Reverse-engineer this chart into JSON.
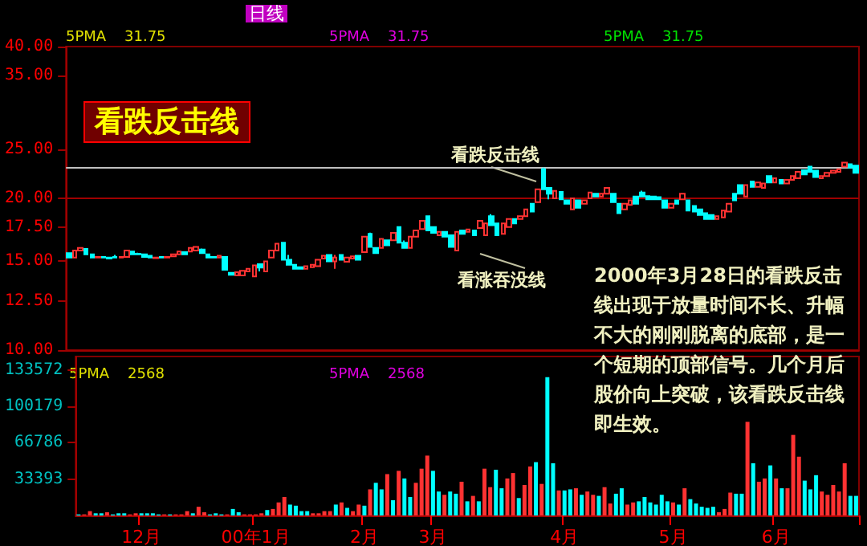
{
  "chart_data": [
    {
      "type": "candlestick",
      "title": "看跌反击线",
      "subtitle": "日线",
      "log": true,
      "ylim": [
        10,
        40
      ],
      "yticks": [
        {
          "value": 10,
          "label": "10.00"
        },
        {
          "value": 12.5,
          "label": "12.50"
        },
        {
          "value": 15,
          "label": "15.00"
        },
        {
          "value": 17.5,
          "label": "17.50"
        },
        {
          "value": 20,
          "label": "20.00"
        },
        {
          "value": 25,
          "label": "25.00"
        },
        {
          "value": 35,
          "label": "35.00"
        },
        {
          "value": 40,
          "label": "40.00"
        }
      ],
      "tick_labels": "y",
      "colors": [
        "#00ffff",
        "#ff3232",
        "#ff3232",
        "#00ffff",
        "#00ffff",
        "#ff3232",
        "#00ffff",
        "#00ffff",
        "#00ffff",
        "#ff3232",
        "#ff3232",
        "#00ffff",
        "#00ffff",
        "#00ffff",
        "#00ffff",
        "#ff3232",
        "#00ffff",
        "#ff3232",
        "#ff3232",
        "#ff3232",
        "#00ffff",
        "#ff3232",
        "#ff3232",
        "#00ffff",
        "#00ffff",
        "#00ffff",
        "#ff3232",
        "#00ffff",
        "#00ffff",
        "#ff3232",
        "#ff3232",
        "#ff3232",
        "#ff3232",
        "#00ffff",
        "#ff3232",
        "#ff3232",
        "#ff3232",
        "#00ffff",
        "#00ffff",
        "#00ffff",
        "#00ffff",
        "#ff3232",
        "#ff3232",
        "#ff3232",
        "#ff3232",
        "#00ffff",
        "#ff3232",
        "#00ffff",
        "#ff3232",
        "#ff3232",
        "#00ffff",
        "#ff3232",
        "#00ffff",
        "#00ffff",
        "#ff3232",
        "#00ffff",
        "#ff3232",
        "#00ffff",
        "#00ffff",
        "#ff3232",
        "#ff3232",
        "#ff3232",
        "#00ffff",
        "#00ffff",
        "#ff3232",
        "#00ffff",
        "#00ffff",
        "#ff3232",
        "#00ffff",
        "#ff3232",
        "#00ffff",
        "#ff3232",
        "#ff3232",
        "#00ffff",
        "#00ffff",
        "#ff3232",
        "#ff3232",
        "#00ffff",
        "#ff3232",
        "#ff3232",
        "#00ffff",
        "#ff3232",
        "#00ffff",
        "#00ffff",
        "#ff3232",
        "#00ffff",
        "#00ffff",
        "#ff3232",
        "#00ffff",
        "#ff3232",
        "#ff3232",
        "#00ffff",
        "#ff3232",
        "#ff3232",
        "#00ffff",
        "#00ffff",
        "#ff3232",
        "#ff3232",
        "#00ffff",
        "#00ffff",
        "#00ffff",
        "#00ffff",
        "#00ffff",
        "#00ffff",
        "#ff3232",
        "#00ffff",
        "#ff3232",
        "#00ffff",
        "#00ffff",
        "#00ffff",
        "#00ffff",
        "#00ffff",
        "#ff3232",
        "#ff3232",
        "#ff3232",
        "#00ffff",
        "#00ffff",
        "#ff3232",
        "#00ffff",
        "#ff3232",
        "#ff3232",
        "#00ffff",
        "#ff3232",
        "#00ffff",
        "#ff3232",
        "#ff3232",
        "#ff3232",
        "#00ffff",
        "#00ffff",
        "#00ffff",
        "#ff3232",
        "#ff3232",
        "#ff3232",
        "#ff3232",
        "#ff3232",
        "#00ffff",
        "#00ffff"
      ],
      "ref_lines": [
        {
          "axis": "y",
          "value": 20,
          "color": "#a00000"
        },
        {
          "axis": "y",
          "value": 23.0,
          "color": "#c0c0c0"
        }
      ],
      "annotations": [
        "5PMA    31.75",
        "5PMA    31.75",
        "5PMA    31.75",
        "看跌反击线",
        "看涨吞没线",
        "2000年3月28日的看跌反击线出现于放量时间不长、升幅不大的刚刚脱离的底部，是一个短期的顶部信号。几个月后股价向上突破，该看跌反击线即生效。"
      ],
      "categories": [
        null,
        null,
        null,
        null,
        null,
        null,
        null,
        null,
        null,
        null,
        null,
        null,
        null,
        null,
        null,
        null,
        null,
        null,
        null,
        null,
        null,
        null,
        null,
        null,
        null,
        null,
        null,
        null,
        null,
        null,
        null,
        null,
        null,
        null,
        null,
        null,
        null,
        null,
        null,
        null,
        null,
        null,
        null,
        null,
        null,
        null,
        null,
        null,
        null,
        null,
        null,
        null,
        null,
        null,
        null,
        null,
        null,
        null,
        null,
        null,
        null,
        null,
        null,
        null,
        null,
        null,
        null,
        null,
        null,
        null,
        null,
        null,
        null,
        null,
        null,
        null,
        null,
        null,
        null,
        null,
        null,
        null,
        null,
        null,
        null,
        null,
        null,
        null,
        null,
        null,
        null,
        null,
        null,
        null,
        null,
        null,
        null,
        null,
        null,
        null,
        null,
        null,
        null,
        null,
        null,
        null,
        null,
        null,
        null,
        null,
        null,
        null,
        null,
        null,
        null,
        null,
        null,
        null,
        null,
        null,
        null,
        null,
        null,
        null,
        null,
        null,
        null,
        null,
        null,
        null,
        null,
        null,
        null,
        null,
        null,
        null,
        null
      ],
      "ohlc": [
        [
          15.57,
          15.62,
          15.22,
          15.26
        ],
        [
          15.26,
          15.8,
          15.2,
          15.76
        ],
        [
          15.76,
          15.98,
          15.72,
          15.95
        ],
        [
          15.87,
          15.9,
          15.45,
          15.49
        ],
        [
          15.49,
          15.52,
          15.22,
          15.26
        ],
        [
          15.26,
          15.34,
          15.22,
          15.3
        ],
        [
          15.3,
          15.34,
          15.22,
          15.26
        ],
        [
          15.26,
          15.3,
          15.15,
          15.19
        ],
        [
          15.3,
          15.45,
          15.22,
          15.26
        ],
        [
          15.26,
          15.3,
          15.2,
          15.3
        ],
        [
          15.3,
          15.8,
          15.26,
          15.76
        ],
        [
          15.68,
          15.72,
          15.45,
          15.49
        ],
        [
          15.53,
          15.6,
          15.45,
          15.49
        ],
        [
          15.49,
          15.52,
          15.26,
          15.3
        ],
        [
          15.38,
          15.42,
          15.22,
          15.26
        ],
        [
          15.22,
          15.3,
          15.19,
          15.26
        ],
        [
          15.3,
          15.34,
          15.22,
          15.26
        ],
        [
          15.26,
          15.3,
          15.2,
          15.3
        ],
        [
          15.34,
          15.52,
          15.3,
          15.49
        ],
        [
          15.49,
          15.72,
          15.45,
          15.68
        ],
        [
          15.64,
          15.68,
          15.45,
          15.49
        ],
        [
          15.68,
          15.98,
          15.64,
          15.95
        ],
        [
          15.76,
          16.05,
          15.72,
          16.02
        ],
        [
          15.83,
          15.9,
          15.53,
          15.57
        ],
        [
          15.49,
          15.52,
          15.22,
          15.26
        ],
        [
          15.3,
          15.34,
          15.2,
          15.26
        ],
        [
          15.26,
          15.42,
          15.22,
          15.38
        ],
        [
          15.3,
          15.34,
          14.4,
          14.43
        ],
        [
          14.23,
          14.27,
          14.05,
          14.1
        ],
        [
          14.07,
          14.3,
          14.03,
          14.27
        ],
        [
          14.07,
          14.4,
          14.03,
          14.37
        ],
        [
          14.33,
          14.55,
          14.3,
          14.5
        ],
        [
          14.0,
          14.76,
          13.95,
          14.73
        ],
        [
          14.8,
          14.85,
          14.33,
          14.57
        ],
        [
          14.33,
          15.03,
          14.3,
          15.0
        ],
        [
          15.26,
          15.8,
          15.2,
          15.76
        ],
        [
          15.76,
          16.3,
          15.72,
          16.25
        ],
        [
          16.33,
          16.38,
          15.08,
          15.11
        ],
        [
          15.11,
          15.45,
          14.73,
          14.77
        ],
        [
          14.77,
          14.8,
          14.45,
          14.5
        ],
        [
          14.6,
          14.63,
          14.45,
          14.5
        ],
        [
          14.5,
          14.7,
          14.45,
          14.67
        ],
        [
          14.6,
          14.8,
          14.57,
          14.77
        ],
        [
          14.67,
          15.15,
          14.63,
          15.11
        ],
        [
          15.19,
          15.42,
          15.15,
          15.38
        ],
        [
          15.45,
          15.5,
          14.97,
          15.0
        ],
        [
          15.0,
          15.45,
          14.5,
          15.26
        ],
        [
          15.45,
          15.5,
          15.08,
          15.11
        ],
        [
          14.97,
          15.3,
          14.93,
          15.26
        ],
        [
          15.19,
          15.38,
          15.15,
          15.34
        ],
        [
          15.38,
          15.42,
          15.08,
          15.11
        ],
        [
          15.64,
          16.82,
          15.6,
          16.78
        ],
        [
          17.01,
          17.1,
          16.0,
          16.02
        ],
        [
          15.95,
          16.0,
          15.53,
          15.57
        ],
        [
          15.95,
          16.66,
          15.9,
          16.62
        ],
        [
          16.51,
          16.55,
          16.1,
          16.14
        ],
        [
          16.51,
          17.12,
          16.47,
          17.08
        ],
        [
          17.54,
          17.6,
          16.3,
          16.33
        ],
        [
          16.33,
          16.5,
          15.9,
          15.95
        ],
        [
          15.95,
          16.82,
          15.9,
          16.78
        ],
        [
          16.78,
          17.31,
          16.74,
          17.27
        ],
        [
          17.39,
          18.08,
          17.35,
          18.04
        ],
        [
          18.43,
          18.5,
          17.23,
          17.27
        ],
        [
          17.54,
          17.58,
          17.05,
          17.08
        ],
        [
          16.9,
          17.2,
          16.86,
          17.16
        ],
        [
          17.16,
          17.2,
          16.74,
          16.78
        ],
        [
          16.9,
          16.94,
          15.98,
          16.02
        ],
        [
          15.76,
          17.2,
          15.72,
          17.16
        ],
        [
          17.27,
          17.31,
          16.97,
          17.01
        ],
        [
          17.16,
          17.39,
          17.12,
          17.35
        ],
        [
          17.27,
          17.31,
          16.86,
          16.9
        ],
        [
          17.46,
          18.08,
          17.42,
          18.04
        ],
        [
          16.9,
          17.88,
          16.86,
          17.84
        ],
        [
          18.43,
          18.6,
          17.65,
          17.69
        ],
        [
          17.84,
          17.88,
          16.86,
          16.9
        ],
        [
          17.01,
          17.88,
          16.97,
          17.84
        ],
        [
          17.54,
          18.23,
          17.5,
          18.19
        ],
        [
          18.19,
          18.23,
          17.8,
          17.84
        ],
        [
          18.19,
          18.47,
          18.15,
          18.43
        ],
        [
          18.43,
          19.05,
          18.39,
          19.01
        ],
        [
          19.51,
          19.55,
          18.78,
          18.82
        ],
        [
          19.66,
          20.9,
          19.6,
          20.85
        ],
        [
          22.85,
          23.01,
          20.8,
          20.85
        ],
        [
          20.97,
          21.0,
          19.9,
          20.43
        ],
        [
          20.0,
          20.75,
          19.95,
          20.69
        ],
        [
          20.6,
          20.65,
          19.85,
          19.9
        ],
        [
          19.81,
          19.85,
          19.47,
          19.51
        ],
        [
          19.01,
          20.05,
          18.97,
          20.0
        ],
        [
          19.81,
          19.85,
          19.12,
          19.16
        ],
        [
          19.51,
          19.85,
          19.47,
          19.81
        ],
        [
          20.0,
          20.58,
          19.95,
          20.53
        ],
        [
          20.43,
          20.48,
          20.11,
          20.16
        ],
        [
          20.16,
          20.48,
          20.11,
          20.43
        ],
        [
          20.43,
          21.0,
          20.38,
          20.97
        ],
        [
          20.43,
          20.48,
          19.62,
          19.66
        ],
        [
          19.51,
          19.55,
          18.64,
          18.68
        ],
        [
          19.01,
          19.55,
          18.97,
          19.51
        ],
        [
          19.41,
          19.85,
          19.37,
          19.81
        ],
        [
          20.16,
          20.2,
          19.47,
          19.51
        ],
        [
          20.53,
          20.7,
          20.11,
          20.16
        ],
        [
          20.21,
          20.25,
          19.85,
          19.9
        ],
        [
          20.16,
          20.2,
          19.85,
          19.9
        ],
        [
          20.11,
          20.15,
          19.86,
          19.9
        ],
        [
          19.81,
          19.85,
          19.12,
          19.16
        ],
        [
          19.16,
          19.55,
          19.12,
          19.51
        ],
        [
          19.81,
          19.85,
          19.47,
          19.51
        ],
        [
          19.9,
          20.48,
          19.85,
          20.43
        ],
        [
          19.81,
          19.85,
          18.88,
          18.92
        ],
        [
          19.31,
          19.35,
          18.78,
          18.82
        ],
        [
          19.01,
          19.05,
          18.49,
          18.53
        ],
        [
          18.68,
          18.72,
          18.15,
          18.19
        ],
        [
          18.53,
          18.57,
          18.15,
          18.19
        ],
        [
          18.19,
          18.47,
          18.15,
          18.43
        ],
        [
          18.34,
          18.96,
          18.3,
          18.92
        ],
        [
          18.82,
          19.55,
          18.78,
          19.51
        ],
        [
          20.43,
          20.48,
          19.77,
          19.81
        ],
        [
          21.24,
          21.3,
          20.38,
          20.43
        ],
        [
          20.16,
          21.3,
          20.11,
          21.24
        ],
        [
          21.61,
          21.66,
          21.03,
          21.08
        ],
        [
          21.08,
          21.55,
          21.03,
          21.5
        ],
        [
          20.97,
          21.45,
          20.92,
          21.4
        ],
        [
          22.14,
          22.2,
          21.45,
          21.5
        ],
        [
          21.5,
          21.98,
          21.45,
          21.93
        ],
        [
          21.77,
          21.82,
          21.35,
          21.4
        ],
        [
          21.4,
          21.82,
          21.35,
          21.77
        ],
        [
          21.77,
          22.2,
          21.72,
          22.14
        ],
        [
          21.93,
          22.63,
          21.88,
          22.58
        ],
        [
          22.74,
          22.8,
          22.25,
          22.3
        ],
        [
          23.11,
          23.16,
          22.53,
          22.58
        ],
        [
          22.69,
          22.74,
          21.99,
          22.04
        ],
        [
          21.93,
          22.2,
          21.88,
          22.14
        ],
        [
          22.14,
          22.5,
          22.1,
          22.46
        ],
        [
          22.46,
          22.74,
          22.42,
          22.69
        ],
        [
          22.58,
          22.9,
          22.53,
          22.85
        ],
        [
          23.11,
          23.6,
          23.06,
          23.54
        ],
        [
          23.38,
          23.43,
          22.96,
          23.01
        ],
        [
          23.22,
          23.27,
          22.41,
          22.46
        ]
      ]
    },
    {
      "type": "bar",
      "ylim": [
        0,
        146000
      ],
      "yticks": [
        33393,
        66786,
        100179,
        133572
      ],
      "annotations": [
        "5PMA    2568",
        "5PMA    2568"
      ],
      "categories": [
        null,
        null,
        null,
        null,
        null,
        null,
        null,
        null,
        null,
        null,
        null,
        "12月",
        null,
        null,
        null,
        null,
        null,
        null,
        null,
        null,
        null,
        null,
        null,
        null,
        null,
        null,
        null,
        null,
        null,
        null,
        null,
        "00年1月",
        null,
        null,
        null,
        null,
        null,
        null,
        null,
        null,
        null,
        null,
        null,
        null,
        null,
        null,
        null,
        null,
        null,
        null,
        "2月",
        null,
        null,
        null,
        null,
        null,
        null,
        null,
        null,
        null,
        null,
        null,
        "3月",
        null,
        null,
        null,
        null,
        null,
        null,
        null,
        null,
        null,
        null,
        null,
        null,
        null,
        null,
        null,
        null,
        null,
        null,
        null,
        null,
        null,
        null,
        "4月",
        null,
        null,
        null,
        null,
        null,
        null,
        null,
        null,
        null,
        null,
        null,
        null,
        null,
        null,
        null,
        null,
        null,
        null,
        "5月",
        null,
        null,
        null,
        null,
        null,
        null,
        null,
        null,
        null,
        null,
        null,
        null,
        null,
        null,
        null,
        null,
        null,
        "6月",
        null,
        null,
        null,
        null,
        null,
        null,
        null,
        null,
        null,
        null,
        null,
        null,
        null,
        null
      ],
      "values": [
        1000,
        1000,
        4000,
        2000,
        2000,
        3000,
        1000,
        2000,
        2000,
        1000,
        2000,
        2000,
        2000,
        2000,
        1000,
        1000,
        1000,
        1000,
        1000,
        4000,
        2000,
        8000,
        3000,
        1000,
        2000,
        1000,
        1000,
        6000,
        3000,
        1000,
        1000,
        1000,
        2000,
        5000,
        6000,
        12000,
        17000,
        10000,
        9000,
        4000,
        4000,
        2000,
        2000,
        4000,
        4000,
        10000,
        12000,
        7000,
        4000,
        10000,
        9000,
        24000,
        30000,
        24000,
        38000,
        14000,
        41000,
        34000,
        17000,
        30000,
        43000,
        55000,
        41000,
        22000,
        19000,
        22000,
        20000,
        31000,
        13000,
        18000,
        13000,
        43000,
        26000,
        42000,
        25000,
        34000,
        39000,
        16000,
        28000,
        45000,
        49000,
        29000,
        127000,
        48000,
        23000,
        23000,
        24000,
        25000,
        19000,
        22000,
        19000,
        18000,
        26000,
        11000,
        20000,
        25000,
        10000,
        12000,
        13000,
        17000,
        12000,
        10000,
        19000,
        13000,
        12000,
        10000,
        25000,
        15000,
        11000,
        8000,
        7000,
        8000,
        3000,
        6000,
        21000,
        20000,
        20000,
        86000,
        48000,
        31000,
        34000,
        46000,
        34000,
        25000,
        25000,
        74000,
        54000,
        32000,
        24000,
        37000,
        22000,
        19000,
        28000,
        22000,
        48000,
        18000,
        18000
      ],
      "colors": [
        "#00ffff",
        "#ff3232",
        "#ff3232",
        "#00ffff",
        "#00ffff",
        "#ff3232",
        "#00ffff",
        "#00ffff",
        "#00ffff",
        "#ff3232",
        "#ff3232",
        "#00ffff",
        "#00ffff",
        "#00ffff",
        "#00ffff",
        "#ff3232",
        "#00ffff",
        "#ff3232",
        "#ff3232",
        "#ff3232",
        "#00ffff",
        "#ff3232",
        "#ff3232",
        "#00ffff",
        "#00ffff",
        "#00ffff",
        "#ff3232",
        "#00ffff",
        "#00ffff",
        "#ff3232",
        "#ff3232",
        "#ff3232",
        "#ff3232",
        "#00ffff",
        "#ff3232",
        "#ff3232",
        "#ff3232",
        "#00ffff",
        "#00ffff",
        "#00ffff",
        "#00ffff",
        "#ff3232",
        "#ff3232",
        "#ff3232",
        "#ff3232",
        "#00ffff",
        "#ff3232",
        "#00ffff",
        "#ff3232",
        "#ff3232",
        "#00ffff",
        "#ff3232",
        "#00ffff",
        "#00ffff",
        "#ff3232",
        "#00ffff",
        "#ff3232",
        "#00ffff",
        "#00ffff",
        "#ff3232",
        "#ff3232",
        "#ff3232",
        "#00ffff",
        "#00ffff",
        "#ff3232",
        "#00ffff",
        "#00ffff",
        "#ff3232",
        "#00ffff",
        "#ff3232",
        "#00ffff",
        "#ff3232",
        "#ff3232",
        "#00ffff",
        "#00ffff",
        "#ff3232",
        "#ff3232",
        "#00ffff",
        "#ff3232",
        "#ff3232",
        "#00ffff",
        "#ff3232",
        "#00ffff",
        "#00ffff",
        "#ff3232",
        "#00ffff",
        "#00ffff",
        "#ff3232",
        "#00ffff",
        "#ff3232",
        "#ff3232",
        "#00ffff",
        "#ff3232",
        "#ff3232",
        "#00ffff",
        "#00ffff",
        "#ff3232",
        "#ff3232",
        "#00ffff",
        "#00ffff",
        "#00ffff",
        "#00ffff",
        "#00ffff",
        "#00ffff",
        "#ff3232",
        "#00ffff",
        "#ff3232",
        "#00ffff",
        "#00ffff",
        "#00ffff",
        "#00ffff",
        "#00ffff",
        "#ff3232",
        "#ff3232",
        "#ff3232",
        "#00ffff",
        "#00ffff",
        "#ff3232",
        "#00ffff",
        "#ff3232",
        "#ff3232",
        "#00ffff",
        "#ff3232",
        "#00ffff",
        "#ff3232",
        "#ff3232",
        "#ff3232",
        "#00ffff",
        "#00ffff",
        "#00ffff",
        "#ff3232",
        "#ff3232",
        "#ff3232",
        "#ff3232",
        "#ff3232",
        "#00ffff",
        "#00ffff"
      ]
    }
  ]
}
